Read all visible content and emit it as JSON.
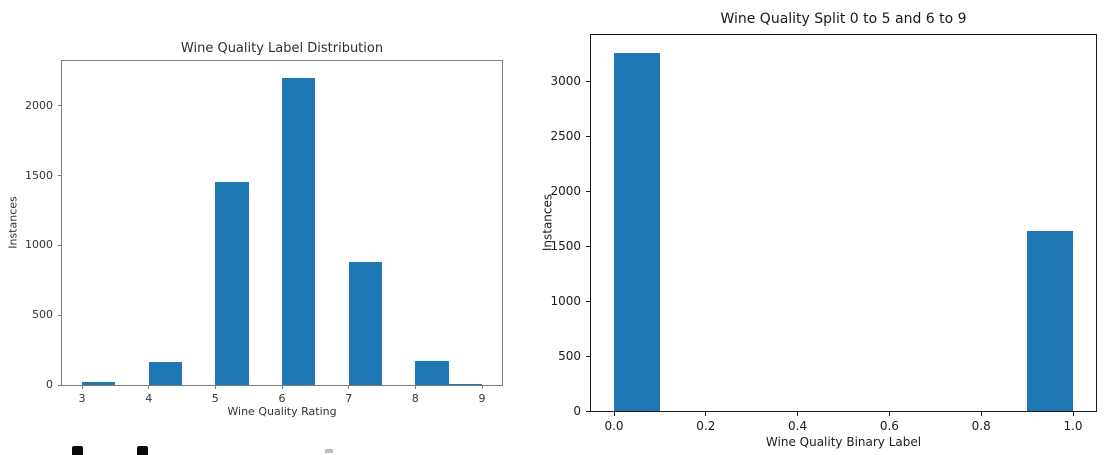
{
  "figure_background": "#ffffff",
  "chart_data": [
    {
      "type": "bar",
      "title": "Wine Quality Label Distribution",
      "xlabel": "Wine Quality Rating",
      "ylabel": "Instances",
      "bar_color": "#1f77b4",
      "grid": false,
      "legend": null,
      "xlim": [
        2.7,
        9.3
      ],
      "ylim": [
        0,
        2320
      ],
      "xticks": [
        3,
        4,
        5,
        6,
        7,
        8,
        9
      ],
      "xtick_labels": [
        "3",
        "4",
        "5",
        "6",
        "7",
        "8",
        "9"
      ],
      "yticks": [
        0,
        500,
        1000,
        1500,
        2000
      ],
      "ytick_labels": [
        "0",
        "500",
        "1000",
        "1500",
        "2000"
      ],
      "bars": [
        {
          "x_start": 3.0,
          "x_end": 3.5,
          "value": 20
        },
        {
          "x_start": 4.0,
          "x_end": 4.5,
          "value": 163
        },
        {
          "x_start": 5.0,
          "x_end": 5.5,
          "value": 1457
        },
        {
          "x_start": 6.0,
          "x_end": 6.5,
          "value": 2198
        },
        {
          "x_start": 7.0,
          "x_end": 7.5,
          "value": 880
        },
        {
          "x_start": 8.0,
          "x_end": 8.5,
          "value": 175
        },
        {
          "x_start": 8.5,
          "x_end": 9.0,
          "value": 5
        }
      ]
    },
    {
      "type": "bar",
      "title": "Wine Quality Split 0 to 5 and 6 to 9",
      "xlabel": "Wine Quality Binary Label",
      "ylabel": "Instances",
      "bar_color": "#1f77b4",
      "grid": false,
      "legend": null,
      "xlim": [
        -0.05,
        1.05
      ],
      "ylim": [
        0,
        3420
      ],
      "xticks": [
        0.0,
        0.2,
        0.4,
        0.6,
        0.8,
        1.0
      ],
      "xtick_labels": [
        "0.0",
        "0.2",
        "0.4",
        "0.6",
        "0.8",
        "1.0"
      ],
      "yticks": [
        0,
        500,
        1000,
        1500,
        2000,
        2500,
        3000
      ],
      "ytick_labels": [
        "0",
        "500",
        "1000",
        "1500",
        "2000",
        "2500",
        "3000"
      ],
      "bars": [
        {
          "x_start": 0.0,
          "x_end": 0.1,
          "value": 3258
        },
        {
          "x_start": 0.9,
          "x_end": 1.0,
          "value": 1640
        }
      ]
    }
  ]
}
